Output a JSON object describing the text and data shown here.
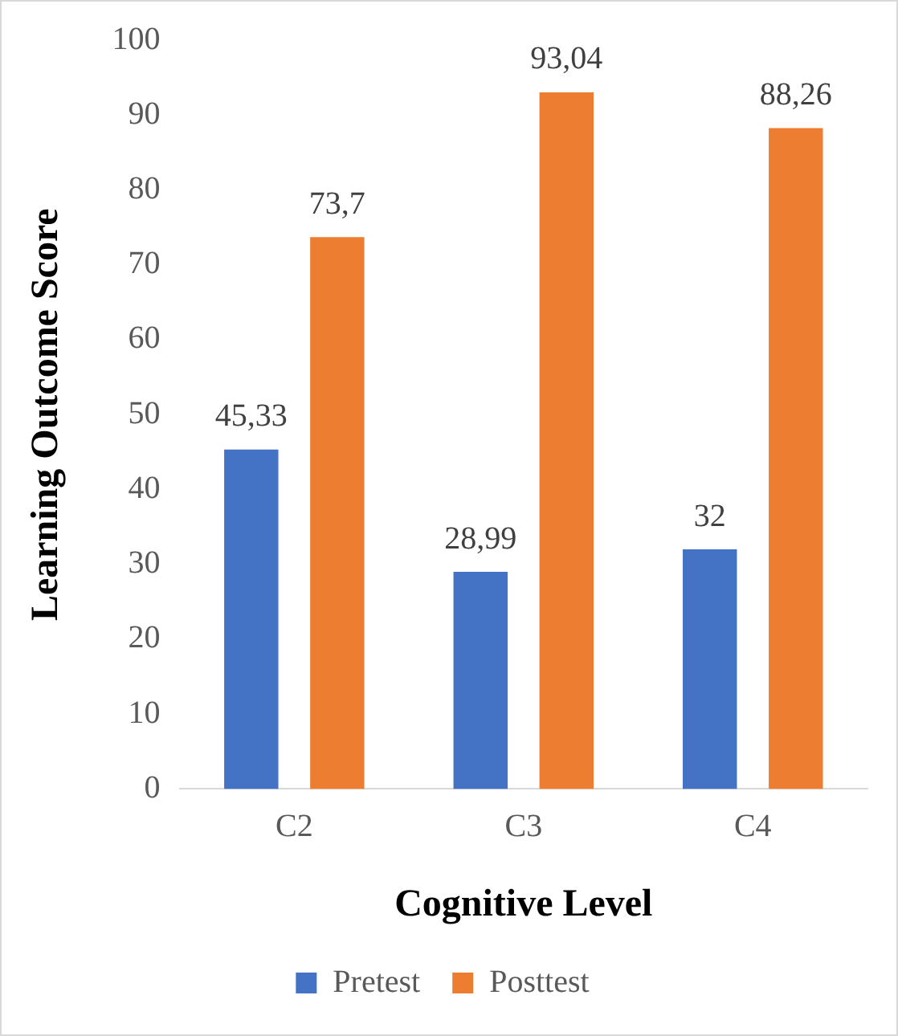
{
  "chart_data": {
    "type": "bar",
    "xlabel": "Cognitive Level",
    "ylabel": "Learning Outcome Score",
    "categories": [
      "C2",
      "C3",
      "C4"
    ],
    "series": [
      {
        "name": "Pretest",
        "color": "#4472c4",
        "values": [
          45.33,
          28.99,
          32
        ],
        "value_labels": [
          "45,33",
          "28,99",
          "32"
        ]
      },
      {
        "name": "Posttest",
        "color": "#ed7d31",
        "values": [
          73.7,
          93.04,
          88.26
        ],
        "value_labels": [
          "73,7",
          "93,04",
          "88,26"
        ]
      }
    ],
    "ylim": [
      0,
      100
    ],
    "yticks": [
      0,
      10,
      20,
      30,
      40,
      50,
      60,
      70,
      80,
      90,
      100
    ],
    "grid": false,
    "legend": "bottom"
  }
}
